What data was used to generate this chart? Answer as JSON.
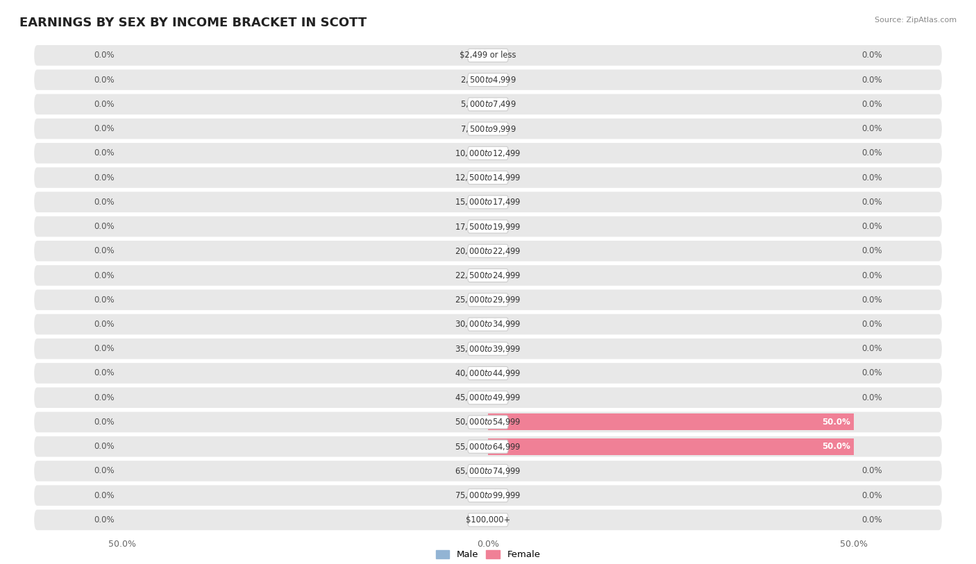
{
  "title": "EARNINGS BY SEX BY INCOME BRACKET IN SCOTT",
  "source": "Source: ZipAtlas.com",
  "categories": [
    "$2,499 or less",
    "$2,500 to $4,999",
    "$5,000 to $7,499",
    "$7,500 to $9,999",
    "$10,000 to $12,499",
    "$12,500 to $14,999",
    "$15,000 to $17,499",
    "$17,500 to $19,999",
    "$20,000 to $22,499",
    "$22,500 to $24,999",
    "$25,000 to $29,999",
    "$30,000 to $34,999",
    "$35,000 to $39,999",
    "$40,000 to $44,999",
    "$45,000 to $49,999",
    "$50,000 to $54,999",
    "$55,000 to $64,999",
    "$65,000 to $74,999",
    "$75,000 to $99,999",
    "$100,000+"
  ],
  "male_values": [
    0.0,
    0.0,
    0.0,
    0.0,
    0.0,
    0.0,
    0.0,
    0.0,
    0.0,
    0.0,
    0.0,
    0.0,
    0.0,
    0.0,
    0.0,
    0.0,
    0.0,
    0.0,
    0.0,
    0.0
  ],
  "female_values": [
    0.0,
    0.0,
    0.0,
    0.0,
    0.0,
    0.0,
    0.0,
    0.0,
    0.0,
    0.0,
    0.0,
    0.0,
    0.0,
    0.0,
    0.0,
    50.0,
    50.0,
    0.0,
    0.0,
    0.0
  ],
  "male_color": "#92b4d4",
  "female_color": "#f08096",
  "male_label": "Male",
  "female_label": "Female",
  "max_val": 50,
  "bar_height": 0.68,
  "title_fontsize": 13,
  "label_fontsize": 8.5,
  "tick_fontsize": 9,
  "background_color": "#ffffff",
  "row_bg_color": "#e8e8e8",
  "label_box_color": "#ffffff",
  "label_box_edge": "#cccccc",
  "value_color": "#555555",
  "value_color_on_bar": "#ffffff"
}
